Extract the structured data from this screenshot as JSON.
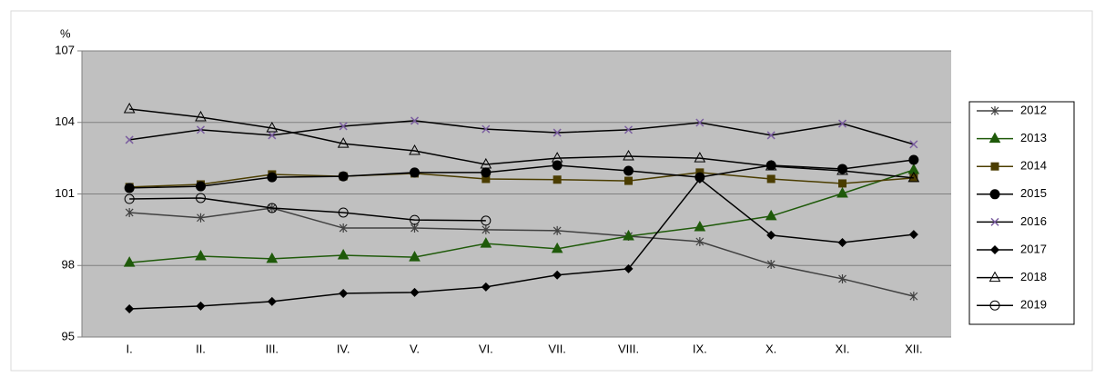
{
  "chart_data": {
    "type": "line",
    "y_label": "%",
    "categories": [
      "I.",
      "II.",
      "III.",
      "IV.",
      "V.",
      "VI.",
      "VII.",
      "VIII.",
      "IX.",
      "X.",
      "XI.",
      "XII."
    ],
    "ylim": [
      95,
      107
    ],
    "yticks": [
      95,
      98,
      101,
      104,
      107
    ],
    "grid": true,
    "legend": "right",
    "series": [
      {
        "name": "2012",
        "color": "#404040",
        "marker": "star",
        "values": [
          100.22,
          100.0,
          100.41,
          99.57,
          99.57,
          99.5,
          99.46,
          99.23,
          99.0,
          98.05,
          97.44,
          96.71
        ]
      },
      {
        "name": "2013",
        "color": "#1f5a0a",
        "marker": "triangle",
        "values": [
          98.12,
          98.39,
          98.28,
          98.43,
          98.35,
          98.92,
          98.7,
          99.23,
          99.61,
          100.07,
          101.02,
          102.01
        ]
      },
      {
        "name": "2014",
        "color": "#4b3d00",
        "marker": "square",
        "values": [
          101.29,
          101.4,
          101.82,
          101.74,
          101.86,
          101.63,
          101.6,
          101.55,
          101.9,
          101.63,
          101.44,
          101.67
        ]
      },
      {
        "name": "2015",
        "color": "#000000",
        "marker": "circle",
        "values": [
          101.25,
          101.32,
          101.7,
          101.74,
          101.9,
          101.9,
          102.2,
          101.97,
          101.7,
          102.2,
          102.05,
          102.43
        ]
      },
      {
        "name": "2016",
        "color": "#000000",
        "marker": "x",
        "values": [
          103.27,
          103.69,
          103.46,
          103.84,
          104.07,
          103.72,
          103.57,
          103.69,
          103.99,
          103.46,
          103.95,
          103.08
        ]
      },
      {
        "name": "2017",
        "color": "#000000",
        "marker": "diamond",
        "values": [
          96.18,
          96.3,
          96.49,
          96.83,
          96.87,
          97.1,
          97.6,
          97.86,
          101.63,
          99.27,
          98.96,
          99.3
        ]
      },
      {
        "name": "2018",
        "color": "#000000",
        "marker": "open-triangle",
        "values": [
          104.56,
          104.22,
          103.76,
          103.11,
          102.81,
          102.24,
          102.5,
          102.58,
          102.5,
          102.16,
          101.97,
          101.67
        ]
      },
      {
        "name": "2019",
        "color": "#000000",
        "marker": "open-circle",
        "values": [
          100.79,
          100.83,
          100.41,
          100.22,
          99.91,
          99.88,
          null,
          null,
          null,
          null,
          null,
          null
        ]
      }
    ]
  }
}
